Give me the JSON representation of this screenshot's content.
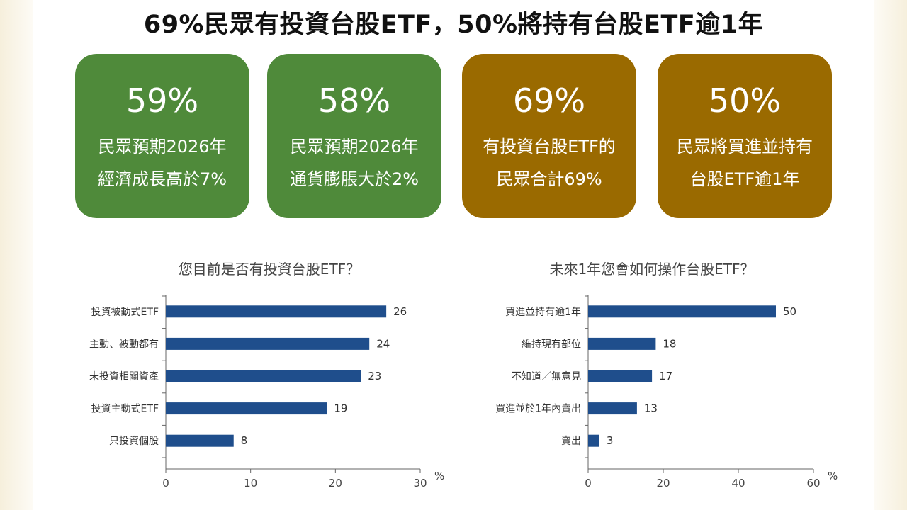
{
  "title": "69%民眾有投資台股ETF，50%將持有台股ETF逾1年",
  "colors": {
    "green": "#4f8a3a",
    "gold": "#9a6a00",
    "bar": "#1f4e8c"
  },
  "cards": [
    {
      "value": "59%",
      "line1": "民眾預期2026年",
      "line2": "經濟成長高於7%",
      "color": "green"
    },
    {
      "value": "58%",
      "line1": "民眾預期2026年",
      "line2": "通貨膨脹大於2%",
      "color": "green"
    },
    {
      "value": "69%",
      "line1": "有投資台股ETF的",
      "line2": "民眾合計69%",
      "color": "gold"
    },
    {
      "value": "50%",
      "line1": "民眾將買進並持有",
      "line2": "台股ETF逾1年",
      "color": "gold"
    }
  ],
  "chart_data": [
    {
      "type": "bar",
      "orientation": "horizontal",
      "title": "您目前是否有投資台股ETF？",
      "categories": [
        "投資被動式ETF",
        "主動、被動都有",
        "未投資相關資產",
        "投資主動式ETF",
        "只投資個股"
      ],
      "values": [
        26,
        24,
        23,
        19,
        8
      ],
      "xlim": [
        0,
        30
      ],
      "xticks": [
        0,
        10,
        20,
        30
      ],
      "xunit": "%"
    },
    {
      "type": "bar",
      "orientation": "horizontal",
      "title": "未來1年您會如何操作台股ETF？",
      "categories": [
        "買進並持有逾1年",
        "維持現有部位",
        "不知道／無意見",
        "買進並於1年內賣出",
        "賣出"
      ],
      "values": [
        50,
        18,
        17,
        13,
        3
      ],
      "xlim": [
        0,
        60
      ],
      "xticks": [
        0,
        20,
        40,
        60
      ],
      "xunit": "%"
    }
  ]
}
